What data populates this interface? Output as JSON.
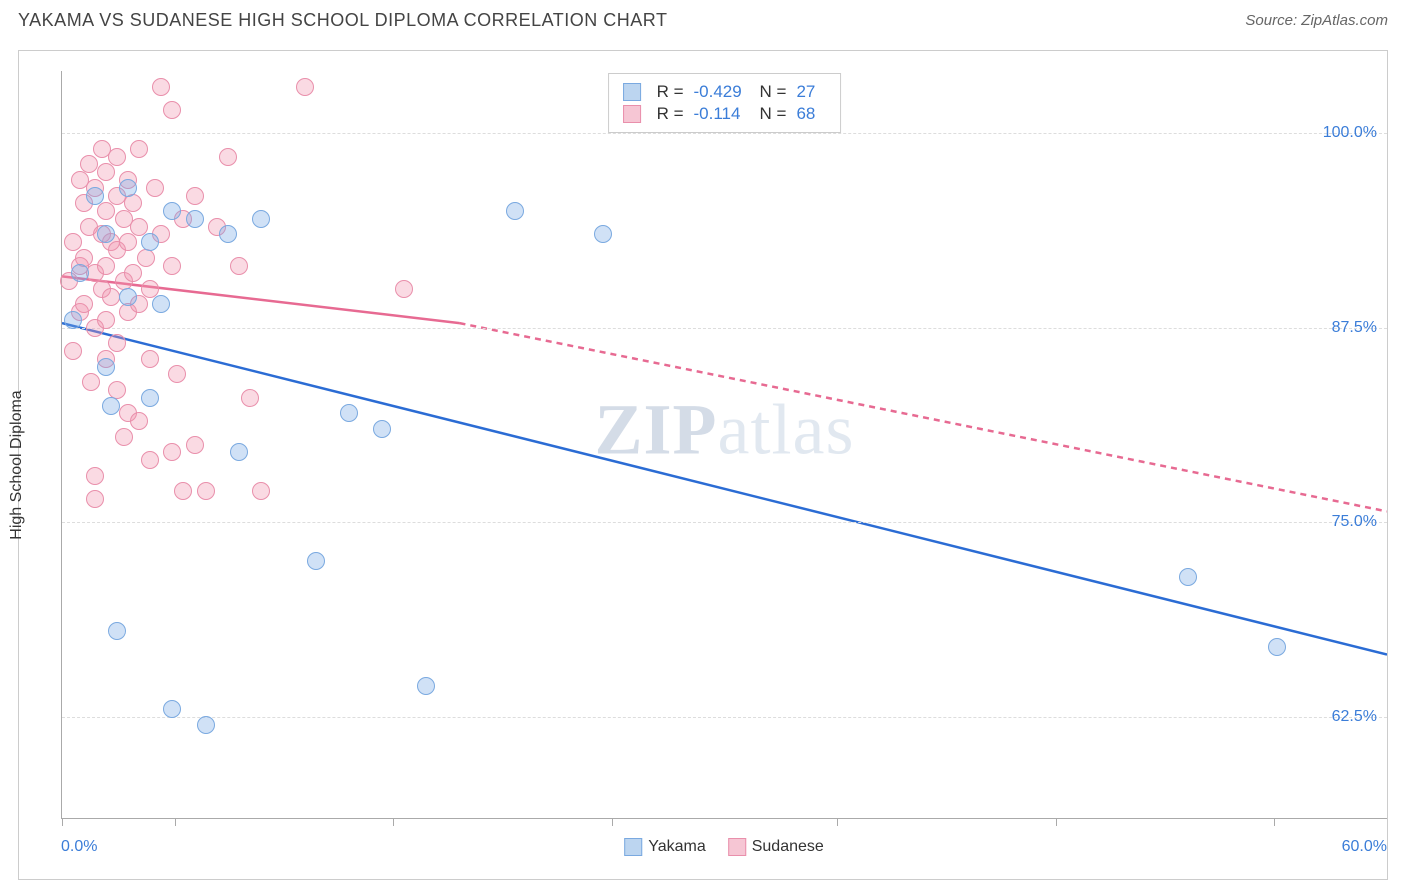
{
  "header": {
    "title": "YAKAMA VS SUDANESE HIGH SCHOOL DIPLOMA CORRELATION CHART",
    "source_prefix": "Source: ",
    "source": "ZipAtlas.com"
  },
  "watermark": {
    "bold": "ZIP",
    "rest": "atlas"
  },
  "chart": {
    "type": "scatter",
    "y_axis_label": "High School Diploma",
    "x_min": 0.0,
    "x_max": 60.0,
    "y_min": 56.0,
    "y_max": 104.0,
    "x_tick_label_min": "0.0%",
    "x_tick_label_max": "60.0%",
    "x_tick_positions_pct": [
      0,
      8.5,
      25,
      41.5,
      58.5,
      75,
      91.5
    ],
    "y_gridlines": [
      {
        "value": 100.0,
        "label": "100.0%"
      },
      {
        "value": 87.5,
        "label": "87.5%"
      },
      {
        "value": 75.0,
        "label": "75.0%"
      },
      {
        "value": 62.5,
        "label": "62.5%"
      }
    ],
    "background_color": "#ffffff",
    "grid_color": "#dddddd",
    "axis_color": "#aaaaaa",
    "tick_label_color": "#3b7dd8",
    "title_color": "#444444",
    "title_fontsize": 18,
    "label_fontsize": 16,
    "point_radius": 9,
    "point_stroke_width": 1.5,
    "series": [
      {
        "name": "Yakama",
        "fill": "rgba(120, 170, 230, 0.35)",
        "stroke": "#7aa9e0",
        "swatch_fill": "#bcd5f0",
        "swatch_border": "#7aa9e0",
        "R": "-0.429",
        "N": "27",
        "trend": {
          "solid": {
            "x1": 0.0,
            "y1": 87.8,
            "x2": 60.0,
            "y2": 66.5
          },
          "stroke": "#2b6cd4",
          "width": 2.5
        },
        "points": [
          [
            0.5,
            88.0
          ],
          [
            0.8,
            91.0
          ],
          [
            1.5,
            96.0
          ],
          [
            2.0,
            93.5
          ],
          [
            2.0,
            85.0
          ],
          [
            2.2,
            82.5
          ],
          [
            2.5,
            68.0
          ],
          [
            3.0,
            96.5
          ],
          [
            3.0,
            89.5
          ],
          [
            4.0,
            93.0
          ],
          [
            4.0,
            83.0
          ],
          [
            5.0,
            95.0
          ],
          [
            5.0,
            63.0
          ],
          [
            6.0,
            94.5
          ],
          [
            6.5,
            62.0
          ],
          [
            7.5,
            93.5
          ],
          [
            8.0,
            79.5
          ],
          [
            9.0,
            94.5
          ],
          [
            11.5,
            72.5
          ],
          [
            13.0,
            82.0
          ],
          [
            14.5,
            81.0
          ],
          [
            16.5,
            64.5
          ],
          [
            20.5,
            95.0
          ],
          [
            24.5,
            93.5
          ],
          [
            51.0,
            71.5
          ],
          [
            55.0,
            67.0
          ],
          [
            4.5,
            89.0
          ]
        ]
      },
      {
        "name": "Sudanese",
        "fill": "rgba(240, 150, 175, 0.35)",
        "stroke": "#e98fab",
        "swatch_fill": "#f6c6d4",
        "swatch_border": "#e98fab",
        "R": "-0.114",
        "N": "68",
        "trend": {
          "solid": {
            "x1": 0.0,
            "y1": 90.8,
            "x2": 18.0,
            "y2": 87.8
          },
          "dashed": {
            "x1": 18.0,
            "y1": 87.8,
            "x2": 60.0,
            "y2": 75.7
          },
          "stroke": "#e76a92",
          "width": 2.5
        },
        "points": [
          [
            0.3,
            90.5
          ],
          [
            0.5,
            93.0
          ],
          [
            0.5,
            86.0
          ],
          [
            0.8,
            97.0
          ],
          [
            0.8,
            91.5
          ],
          [
            0.8,
            88.5
          ],
          [
            1.0,
            95.5
          ],
          [
            1.0,
            92.0
          ],
          [
            1.0,
            89.0
          ],
          [
            1.2,
            98.0
          ],
          [
            1.2,
            94.0
          ],
          [
            1.3,
            84.0
          ],
          [
            1.5,
            96.5
          ],
          [
            1.5,
            91.0
          ],
          [
            1.5,
            87.5
          ],
          [
            1.5,
            78.0
          ],
          [
            1.5,
            76.5
          ],
          [
            1.8,
            99.0
          ],
          [
            1.8,
            93.5
          ],
          [
            1.8,
            90.0
          ],
          [
            2.0,
            97.5
          ],
          [
            2.0,
            95.0
          ],
          [
            2.0,
            91.5
          ],
          [
            2.0,
            88.0
          ],
          [
            2.0,
            85.5
          ],
          [
            2.2,
            93.0
          ],
          [
            2.2,
            89.5
          ],
          [
            2.5,
            98.5
          ],
          [
            2.5,
            96.0
          ],
          [
            2.5,
            92.5
          ],
          [
            2.5,
            86.5
          ],
          [
            2.5,
            83.5
          ],
          [
            2.8,
            94.5
          ],
          [
            2.8,
            90.5
          ],
          [
            2.8,
            80.5
          ],
          [
            3.0,
            97.0
          ],
          [
            3.0,
            93.0
          ],
          [
            3.0,
            88.5
          ],
          [
            3.0,
            82.0
          ],
          [
            3.2,
            95.5
          ],
          [
            3.2,
            91.0
          ],
          [
            3.5,
            99.0
          ],
          [
            3.5,
            94.0
          ],
          [
            3.5,
            89.0
          ],
          [
            3.5,
            81.5
          ],
          [
            3.8,
            92.0
          ],
          [
            4.0,
            90.0
          ],
          [
            4.0,
            85.5
          ],
          [
            4.0,
            79.0
          ],
          [
            4.2,
            96.5
          ],
          [
            4.5,
            103.0
          ],
          [
            4.5,
            93.5
          ],
          [
            5.0,
            101.5
          ],
          [
            5.0,
            91.5
          ],
          [
            5.0,
            79.5
          ],
          [
            5.2,
            84.5
          ],
          [
            5.5,
            94.5
          ],
          [
            5.5,
            77.0
          ],
          [
            6.0,
            96.0
          ],
          [
            6.0,
            80.0
          ],
          [
            6.5,
            77.0
          ],
          [
            7.0,
            94.0
          ],
          [
            7.5,
            98.5
          ],
          [
            8.0,
            91.5
          ],
          [
            8.5,
            83.0
          ],
          [
            9.0,
            77.0
          ],
          [
            11.0,
            103.0
          ],
          [
            15.5,
            90.0
          ]
        ]
      }
    ],
    "legend": {
      "R_label": "R =",
      "N_label": "N ="
    }
  }
}
